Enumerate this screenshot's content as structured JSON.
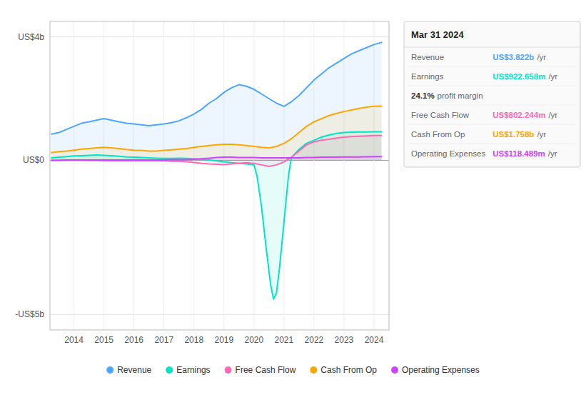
{
  "chart_data": {
    "type": "area",
    "xlim": [
      2013.2,
      2024.5
    ],
    "xticks": [
      2014,
      2015,
      2016,
      2017,
      2018,
      2019,
      2020,
      2021,
      2022,
      2023,
      2024
    ],
    "ylim": [
      -5.5,
      4.5
    ],
    "yticks": [
      {
        "value": -5,
        "label": "-US$5b"
      },
      {
        "value": 0,
        "label": "US$0"
      },
      {
        "value": 4,
        "label": "US$4b"
      }
    ],
    "grid": true,
    "legend": "bottom",
    "series": [
      {
        "name": "Revenue",
        "color": "#4da6ff",
        "x": [
          2013.25,
          2013.5,
          2013.75,
          2014.0,
          2014.25,
          2014.5,
          2014.75,
          2015.0,
          2015.25,
          2015.5,
          2015.75,
          2016.0,
          2016.25,
          2016.5,
          2016.75,
          2017.0,
          2017.25,
          2017.5,
          2017.75,
          2018.0,
          2018.25,
          2018.5,
          2018.75,
          2019.0,
          2019.25,
          2019.5,
          2019.75,
          2020.0,
          2020.25,
          2020.5,
          2020.75,
          2021.0,
          2021.25,
          2021.5,
          2021.75,
          2022.0,
          2022.25,
          2022.5,
          2022.75,
          2023.0,
          2023.25,
          2023.5,
          2023.75,
          2024.0,
          2024.25
        ],
        "values": [
          0.85,
          0.9,
          1.0,
          1.1,
          1.2,
          1.25,
          1.3,
          1.35,
          1.3,
          1.25,
          1.2,
          1.18,
          1.15,
          1.12,
          1.15,
          1.18,
          1.22,
          1.28,
          1.38,
          1.5,
          1.65,
          1.85,
          2.0,
          2.2,
          2.35,
          2.45,
          2.4,
          2.3,
          2.15,
          2.0,
          1.85,
          1.75,
          1.9,
          2.1,
          2.35,
          2.6,
          2.8,
          3.0,
          3.15,
          3.3,
          3.45,
          3.55,
          3.65,
          3.75,
          3.82
        ]
      },
      {
        "name": "Earnings",
        "color": "#00e5c8",
        "x": [
          2013.25,
          2013.5,
          2013.75,
          2014.0,
          2014.25,
          2014.5,
          2014.75,
          2015.0,
          2015.25,
          2015.5,
          2015.75,
          2016.0,
          2016.25,
          2016.5,
          2016.75,
          2017.0,
          2017.25,
          2017.5,
          2017.75,
          2018.0,
          2018.25,
          2018.5,
          2018.75,
          2019.0,
          2019.25,
          2019.5,
          2019.75,
          2020.0,
          2020.1,
          2020.25,
          2020.4,
          2020.55,
          2020.65,
          2020.75,
          2020.85,
          2021.0,
          2021.15,
          2021.25,
          2021.5,
          2021.75,
          2022.0,
          2022.25,
          2022.5,
          2022.75,
          2023.0,
          2023.25,
          2023.5,
          2023.75,
          2024.0,
          2024.25
        ],
        "values": [
          0.08,
          0.1,
          0.12,
          0.14,
          0.15,
          0.16,
          0.17,
          0.16,
          0.15,
          0.13,
          0.11,
          0.1,
          0.09,
          0.08,
          0.07,
          0.06,
          0.06,
          0.07,
          0.06,
          0.05,
          0.03,
          0.01,
          -0.02,
          -0.05,
          -0.08,
          -0.1,
          -0.12,
          -0.15,
          -0.5,
          -1.5,
          -2.8,
          -4.0,
          -4.5,
          -4.3,
          -3.5,
          -2.0,
          -0.5,
          0.1,
          0.35,
          0.55,
          0.65,
          0.75,
          0.82,
          0.87,
          0.9,
          0.91,
          0.915,
          0.92,
          0.922,
          0.922
        ]
      },
      {
        "name": "Free Cash Flow",
        "color": "#ff69b4",
        "x": [
          2013.25,
          2013.5,
          2013.75,
          2014.0,
          2014.25,
          2014.5,
          2014.75,
          2015.0,
          2015.25,
          2015.5,
          2015.75,
          2016.0,
          2016.25,
          2016.5,
          2016.75,
          2017.0,
          2017.25,
          2017.5,
          2017.75,
          2018.0,
          2018.25,
          2018.5,
          2018.75,
          2019.0,
          2019.25,
          2019.5,
          2019.75,
          2020.0,
          2020.25,
          2020.5,
          2020.75,
          2021.0,
          2021.25,
          2021.5,
          2021.75,
          2022.0,
          2022.25,
          2022.5,
          2022.75,
          2023.0,
          2023.25,
          2023.5,
          2023.75,
          2024.0,
          2024.25
        ],
        "values": [
          0.0,
          0.0,
          0.0,
          0.0,
          0.0,
          -0.01,
          -0.01,
          -0.02,
          -0.02,
          -0.02,
          -0.02,
          -0.02,
          -0.02,
          -0.02,
          -0.02,
          -0.02,
          -0.03,
          -0.03,
          -0.05,
          -0.07,
          -0.1,
          -0.12,
          -0.13,
          -0.14,
          -0.12,
          -0.1,
          -0.08,
          -0.1,
          -0.15,
          -0.2,
          -0.15,
          -0.05,
          0.1,
          0.3,
          0.5,
          0.6,
          0.65,
          0.68,
          0.72,
          0.75,
          0.77,
          0.78,
          0.79,
          0.8,
          0.802
        ]
      },
      {
        "name": "Cash From Op",
        "color": "#ffa500",
        "x": [
          2013.25,
          2013.5,
          2013.75,
          2014.0,
          2014.25,
          2014.5,
          2014.75,
          2015.0,
          2015.25,
          2015.5,
          2015.75,
          2016.0,
          2016.25,
          2016.5,
          2016.75,
          2017.0,
          2017.25,
          2017.5,
          2017.75,
          2018.0,
          2018.25,
          2018.5,
          2018.75,
          2019.0,
          2019.25,
          2019.5,
          2019.75,
          2020.0,
          2020.25,
          2020.5,
          2020.75,
          2021.0,
          2021.25,
          2021.5,
          2021.75,
          2022.0,
          2022.25,
          2022.5,
          2022.75,
          2023.0,
          2023.25,
          2023.5,
          2023.75,
          2024.0,
          2024.25
        ],
        "values": [
          0.25,
          0.28,
          0.3,
          0.33,
          0.36,
          0.38,
          0.4,
          0.42,
          0.4,
          0.38,
          0.35,
          0.33,
          0.32,
          0.3,
          0.3,
          0.32,
          0.34,
          0.36,
          0.38,
          0.42,
          0.45,
          0.48,
          0.5,
          0.52,
          0.52,
          0.5,
          0.48,
          0.45,
          0.42,
          0.4,
          0.45,
          0.55,
          0.7,
          0.9,
          1.1,
          1.25,
          1.35,
          1.45,
          1.52,
          1.58,
          1.63,
          1.68,
          1.72,
          1.75,
          1.758
        ]
      },
      {
        "name": "Operating Expenses",
        "color": "#cc44ff",
        "x": [
          2013.25,
          2013.5,
          2013.75,
          2014.0,
          2014.25,
          2014.5,
          2014.75,
          2015.0,
          2015.25,
          2015.5,
          2015.75,
          2016.0,
          2016.25,
          2016.5,
          2016.75,
          2017.0,
          2017.25,
          2017.5,
          2017.75,
          2018.0,
          2018.25,
          2018.5,
          2018.75,
          2019.0,
          2019.25,
          2019.5,
          2019.75,
          2020.0,
          2020.25,
          2020.5,
          2020.75,
          2021.0,
          2021.25,
          2021.5,
          2021.75,
          2022.0,
          2022.25,
          2022.5,
          2022.75,
          2023.0,
          2023.25,
          2023.5,
          2023.75,
          2024.0,
          2024.25
        ],
        "values": [
          0.0,
          0.0,
          0.01,
          0.01,
          0.01,
          0.01,
          0.01,
          0.01,
          0.01,
          0.01,
          0.01,
          0.01,
          0.01,
          0.01,
          0.01,
          0.01,
          0.02,
          0.02,
          0.02,
          0.03,
          0.05,
          0.07,
          0.09,
          0.1,
          0.1,
          0.09,
          0.09,
          0.09,
          0.08,
          0.08,
          0.08,
          0.08,
          0.08,
          0.08,
          0.09,
          0.09,
          0.1,
          0.1,
          0.1,
          0.11,
          0.11,
          0.11,
          0.115,
          0.118,
          0.118
        ]
      }
    ],
    "annotations": {
      "title": "Mar 31 2024",
      "rows": [
        {
          "label": "Revenue",
          "value": "US$3.822b",
          "suffix": "/yr",
          "color": "#4da6ff"
        },
        {
          "label": "Earnings",
          "value": "US$922.658m",
          "suffix": "/yr",
          "color": "#00e5c8"
        },
        {
          "value": "24.1%",
          "suffix": "profit margin"
        },
        {
          "label": "Free Cash Flow",
          "value": "US$802.244m",
          "suffix": "/yr",
          "color": "#ff69b4"
        },
        {
          "label": "Cash From Op",
          "value": "US$1.758b",
          "suffix": "/yr",
          "color": "#ffa500"
        },
        {
          "label": "Operating Expenses",
          "value": "US$118.489m",
          "suffix": "/yr",
          "color": "#cc44ff"
        }
      ]
    }
  }
}
